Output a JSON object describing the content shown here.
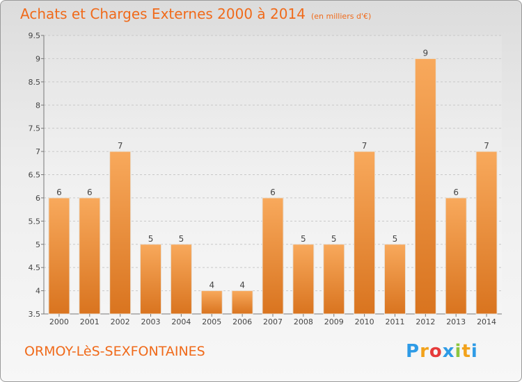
{
  "title": "Achats et Charges Externes 2000 à 2014",
  "unit": "(en milliers d'€)",
  "commune": "ORMOY-LèS-SEXFONTAINES",
  "logo": {
    "letters": [
      "P",
      "r",
      "o",
      "x",
      "i",
      "t",
      "i"
    ],
    "colors": [
      "#2e9be6",
      "#f2a21b",
      "#e63b3b",
      "#2e9be6",
      "#8cc63f",
      "#f2a21b",
      "#2e9be6"
    ]
  },
  "colors": {
    "accent": "#f06a1a",
    "bar_light": "#f8a95c",
    "bar_dark": "#d9741f"
  },
  "chart_data": {
    "type": "bar",
    "categories": [
      "2000",
      "2001",
      "2002",
      "2003",
      "2004",
      "2005",
      "2006",
      "2007",
      "2008",
      "2009",
      "2010",
      "2011",
      "2012",
      "2013",
      "2014"
    ],
    "values": [
      6,
      6,
      7,
      5,
      5,
      4,
      4,
      6,
      5,
      5,
      7,
      5,
      9,
      6,
      7
    ],
    "data_labels": [
      "6",
      "6",
      "7",
      "5",
      "5",
      "4",
      "4",
      "6",
      "5",
      "5",
      "7",
      "5",
      "9",
      "6",
      "7"
    ],
    "title": "Achats et Charges Externes 2000 à 2014",
    "xlabel": "",
    "ylabel": "",
    "ylim": [
      3.5,
      9.5
    ],
    "yticks": [
      3.5,
      4,
      4.5,
      5,
      5.5,
      6,
      6.5,
      7,
      7.5,
      8,
      8.5,
      9,
      9.5
    ],
    "ytick_labels": [
      "3.5",
      "4",
      "4.5",
      "5",
      "5.5",
      "6",
      "6.5",
      "7",
      "7.5",
      "8",
      "8.5",
      "9",
      "9.5"
    ],
    "grid": true
  }
}
